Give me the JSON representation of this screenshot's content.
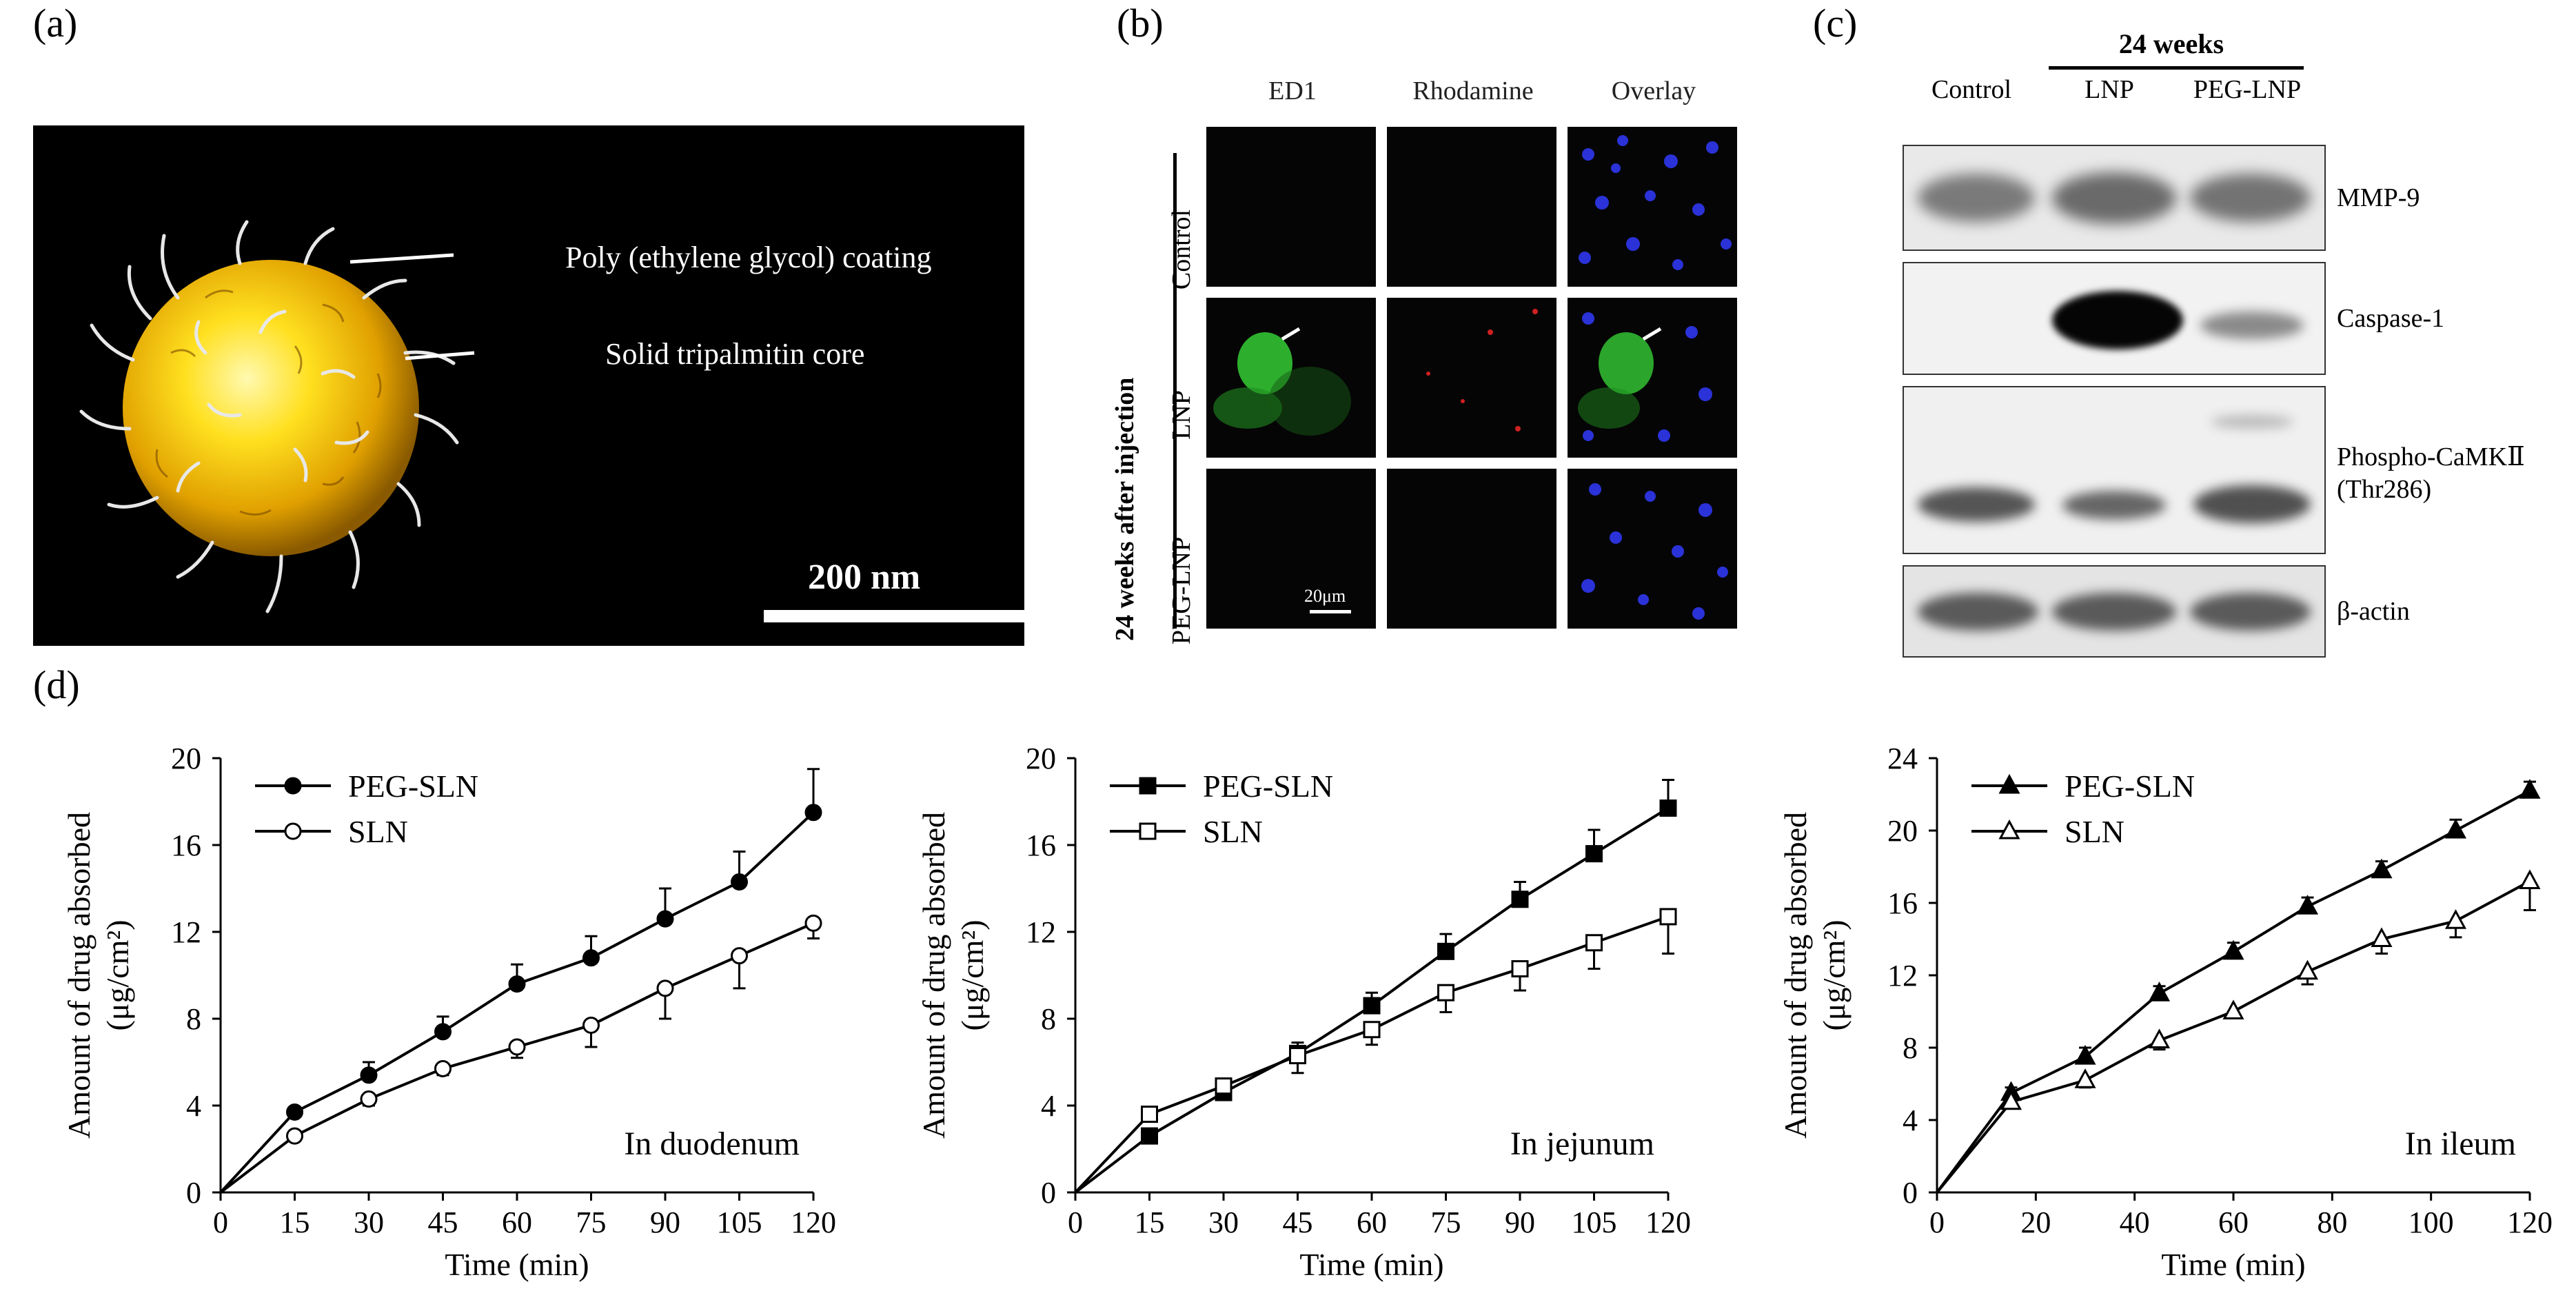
{
  "panel_labels": {
    "a": "(a)",
    "b": "(b)",
    "c": "(c)",
    "d": "(d)"
  },
  "panel_a": {
    "annotation_coating": "Poly (ethylene glycol) coating",
    "annotation_core": "Solid tripalmitin core",
    "scale_bar": "200 nm",
    "colors": {
      "background": "#000000",
      "core": "#f2c200",
      "strands": "#ffffff"
    }
  },
  "panel_b": {
    "columns": [
      "ED1",
      "Rhodamine",
      "Overlay"
    ],
    "rows": [
      "Control",
      "LNP",
      "PEG-LNP"
    ],
    "side_label": "24 weeks after injection",
    "scale_bar": "20μm"
  },
  "panel_c": {
    "header": "24 weeks",
    "lanes": [
      "Control",
      "LNP",
      "PEG-LNP"
    ],
    "blots": [
      {
        "label": "MMP-9"
      },
      {
        "label": "Caspase-1"
      },
      {
        "label": "Phospho-CaMKⅡ",
        "label2": "(Thr286)"
      },
      {
        "label": "β-actin"
      }
    ]
  },
  "chart_data": [
    {
      "type": "line",
      "annotation": "In duodenum",
      "xlabel": "Time (min)",
      "ylabel": "Amount of drug absorbed",
      "ylabel_unit": "(μg/cm²)",
      "xlim": [
        0,
        120
      ],
      "ylim": [
        0,
        20
      ],
      "xticks": [
        0,
        15,
        30,
        45,
        60,
        75,
        90,
        105,
        120
      ],
      "yticks": [
        0,
        4,
        8,
        12,
        16,
        20
      ],
      "legend_position": "top-left",
      "series": [
        {
          "name": "PEG-SLN",
          "marker": "filled-circle",
          "x": [
            0,
            15,
            30,
            45,
            60,
            75,
            90,
            105,
            120
          ],
          "y": [
            0,
            3.7,
            5.4,
            7.4,
            9.6,
            10.8,
            12.6,
            14.3,
            17.5
          ],
          "err": [
            0,
            0.2,
            0.6,
            0.7,
            0.9,
            1.0,
            1.4,
            1.4,
            2.0
          ]
        },
        {
          "name": "SLN",
          "marker": "open-circle",
          "x": [
            0,
            15,
            30,
            45,
            60,
            75,
            90,
            105,
            120
          ],
          "y": [
            0,
            2.6,
            4.3,
            5.7,
            6.7,
            7.7,
            9.4,
            10.9,
            12.4
          ],
          "err": [
            0,
            0.2,
            0.3,
            0.3,
            0.5,
            1.0,
            1.4,
            1.5,
            0.7
          ]
        }
      ]
    },
    {
      "type": "line",
      "annotation": "In jejunum",
      "xlabel": "Time (min)",
      "ylabel": "Amount of drug absorbed",
      "ylabel_unit": "(μg/cm²)",
      "xlim": [
        0,
        120
      ],
      "ylim": [
        0,
        20
      ],
      "xticks": [
        0,
        15,
        30,
        45,
        60,
        75,
        90,
        105,
        120
      ],
      "yticks": [
        0,
        4,
        8,
        12,
        16,
        20
      ],
      "legend_position": "top-left",
      "series": [
        {
          "name": "PEG-SLN",
          "marker": "filled-square",
          "x": [
            0,
            15,
            30,
            45,
            60,
            75,
            90,
            105,
            120
          ],
          "y": [
            0,
            2.6,
            4.6,
            6.4,
            8.6,
            11.1,
            13.5,
            15.6,
            17.7
          ],
          "err": [
            0,
            0.2,
            0.3,
            0.5,
            0.6,
            0.8,
            0.8,
            1.1,
            1.3
          ]
        },
        {
          "name": "SLN",
          "marker": "open-square",
          "x": [
            0,
            15,
            30,
            45,
            60,
            75,
            90,
            105,
            120
          ],
          "y": [
            0,
            3.6,
            4.9,
            6.3,
            7.5,
            9.2,
            10.3,
            11.5,
            12.7
          ],
          "err": [
            0,
            0.3,
            0.3,
            0.8,
            0.7,
            0.9,
            1.0,
            1.2,
            1.7
          ]
        }
      ]
    },
    {
      "type": "line",
      "annotation": "In ileum",
      "xlabel": "Time (min)",
      "ylabel": "Amount of drug absorbed",
      "ylabel_unit": "(μg/cm²)",
      "xlim": [
        0,
        120
      ],
      "ylim": [
        0,
        24
      ],
      "xticks": [
        0,
        20,
        40,
        60,
        80,
        100,
        120
      ],
      "yticks": [
        0,
        4,
        8,
        12,
        16,
        20,
        24
      ],
      "legend_position": "top-left",
      "series": [
        {
          "name": "PEG-SLN",
          "marker": "filled-triangle",
          "x": [
            0,
            15,
            30,
            45,
            60,
            75,
            90,
            105,
            120
          ],
          "y": [
            0,
            5.5,
            7.5,
            11.0,
            13.3,
            15.8,
            17.8,
            20.0,
            22.2
          ],
          "err": [
            0,
            0.3,
            0.5,
            0.4,
            0.5,
            0.5,
            0.5,
            0.6,
            0.5
          ]
        },
        {
          "name": "SLN",
          "marker": "open-triangle",
          "x": [
            0,
            15,
            30,
            45,
            60,
            75,
            90,
            105,
            120
          ],
          "y": [
            0,
            5.0,
            6.2,
            8.4,
            10.0,
            12.2,
            14.0,
            15.0,
            17.2
          ],
          "err": [
            0,
            0.3,
            0.4,
            0.5,
            0.3,
            0.7,
            0.8,
            0.9,
            1.6
          ]
        }
      ]
    }
  ]
}
